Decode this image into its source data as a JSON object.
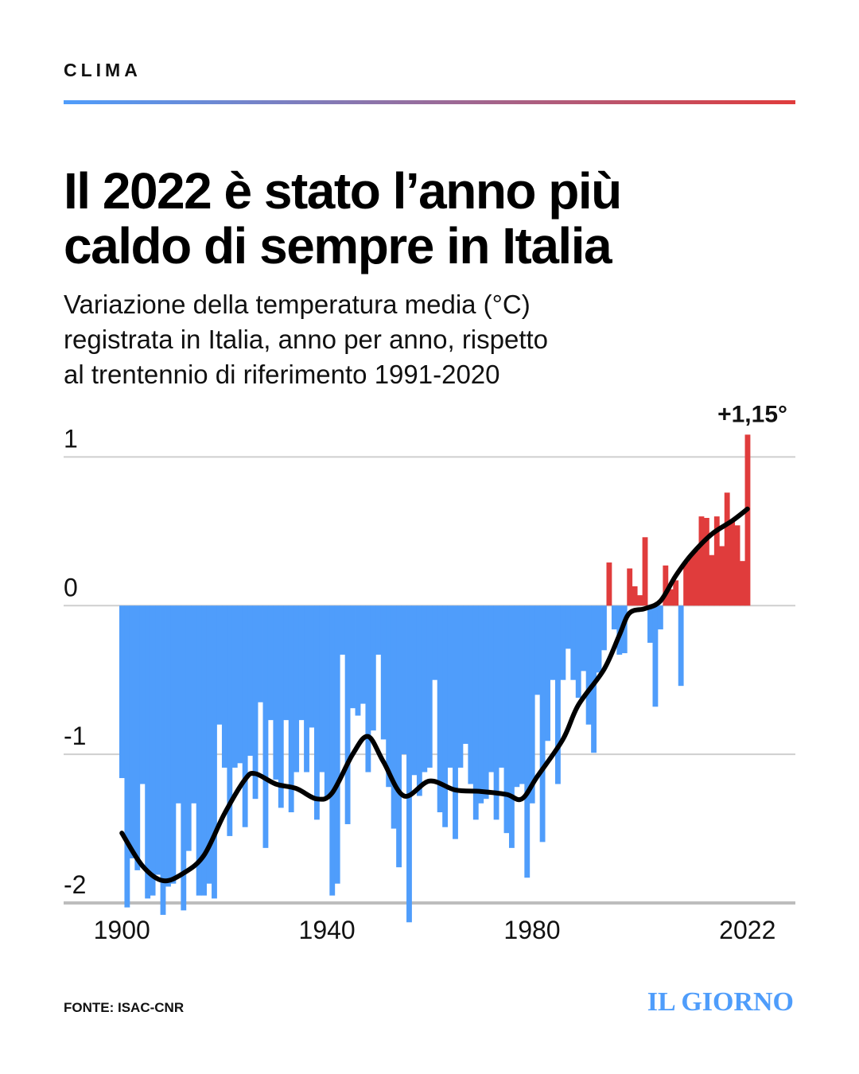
{
  "chart_data": {
    "type": "bar",
    "kicker": "CLIMA",
    "title": [
      "Il 2022 è stato l’anno più",
      "caldo di sempre in Italia"
    ],
    "subtitle": [
      "Variazione della temperatura media (°C)",
      "registrata in Italia, anno per anno, rispetto",
      "al trentennio di riferimento 1991-2020"
    ],
    "annotation": "+1,15°",
    "source": "FONTE: ISAC-CNR",
    "logo": "IL GIORNO",
    "positive_color": "#e03c3c",
    "negative_color": "#4f9dfb",
    "grid": true,
    "xlim": [
      1900,
      2022
    ],
    "xticks": [
      1900,
      1940,
      1980,
      2022
    ],
    "ylim": [
      -2,
      1.2
    ],
    "yticks": [
      1,
      0,
      -1,
      -2
    ],
    "x": [
      1900,
      1901,
      1902,
      1903,
      1904,
      1905,
      1906,
      1907,
      1908,
      1909,
      1910,
      1911,
      1912,
      1913,
      1914,
      1915,
      1916,
      1917,
      1918,
      1919,
      1920,
      1921,
      1922,
      1923,
      1924,
      1925,
      1926,
      1927,
      1928,
      1929,
      1930,
      1931,
      1932,
      1933,
      1934,
      1935,
      1936,
      1937,
      1938,
      1939,
      1940,
      1941,
      1942,
      1943,
      1944,
      1945,
      1946,
      1947,
      1948,
      1949,
      1950,
      1951,
      1952,
      1953,
      1954,
      1955,
      1956,
      1957,
      1958,
      1959,
      1960,
      1961,
      1962,
      1963,
      1964,
      1965,
      1966,
      1967,
      1968,
      1969,
      1970,
      1971,
      1972,
      1973,
      1974,
      1975,
      1976,
      1977,
      1978,
      1979,
      1980,
      1981,
      1982,
      1983,
      1984,
      1985,
      1986,
      1987,
      1988,
      1989,
      1990,
      1991,
      1992,
      1993,
      1994,
      1995,
      1996,
      1997,
      1998,
      1999,
      2000,
      2001,
      2002,
      2003,
      2004,
      2005,
      2006,
      2007,
      2008,
      2009,
      2010,
      2011,
      2012,
      2013,
      2014,
      2015,
      2016,
      2017,
      2018,
      2019,
      2020,
      2021,
      2022
    ],
    "values": [
      -1.16,
      -2.03,
      -1.7,
      -1.78,
      -1.2,
      -1.97,
      -1.95,
      -1.81,
      -2.08,
      -1.89,
      -1.87,
      -1.33,
      -2.05,
      -1.65,
      -1.33,
      -1.95,
      -1.95,
      -1.87,
      -1.97,
      -0.8,
      -1.09,
      -1.55,
      -1.09,
      -1.06,
      -1.49,
      -1.01,
      -1.3,
      -0.65,
      -1.63,
      -0.77,
      -1.17,
      -1.36,
      -0.77,
      -1.39,
      -1.12,
      -0.77,
      -1.12,
      -0.82,
      -1.44,
      -1.12,
      -1.3,
      -1.95,
      -1.87,
      -0.33,
      -1.47,
      -0.69,
      -0.74,
      -0.66,
      -1.12,
      -0.84,
      -0.33,
      -0.9,
      -1.22,
      -1.5,
      -1.76,
      -1.0,
      -2.13,
      -1.14,
      -1.28,
      -1.12,
      -1.09,
      -0.5,
      -1.39,
      -1.49,
      -1.09,
      -1.57,
      -1.09,
      -0.93,
      -1.2,
      -1.44,
      -1.33,
      -1.3,
      -1.12,
      -1.44,
      -1.09,
      -1.53,
      -1.63,
      -1.22,
      -1.2,
      -1.83,
      -1.33,
      -0.6,
      -1.59,
      -0.91,
      -0.5,
      -1.2,
      -0.5,
      -0.29,
      -0.5,
      -0.62,
      -0.44,
      -0.8,
      -0.99,
      -0.45,
      -0.3,
      0.29,
      -0.16,
      -0.33,
      -0.32,
      0.25,
      0.13,
      0.07,
      0.46,
      -0.25,
      -0.68,
      -0.16,
      0.27,
      0.11,
      0.17,
      -0.54,
      0.29,
      0.34,
      0.37,
      0.6,
      0.59,
      0.34,
      0.6,
      0.4,
      0.76,
      0.57,
      0.54,
      0.3,
      1.15
    ],
    "trend": {
      "color": "#000000",
      "x": [
        1900,
        1904,
        1908,
        1912,
        1916,
        1920,
        1924,
        1926,
        1930,
        1934,
        1938,
        1941,
        1945,
        1948,
        1951,
        1955,
        1960,
        1965,
        1970,
        1975,
        1978,
        1981,
        1986,
        1989,
        1994,
        1997,
        1999,
        2002,
        2005,
        2008,
        2011,
        2015,
        2019,
        2022
      ],
      "values": [
        -1.53,
        -1.75,
        -1.85,
        -1.8,
        -1.68,
        -1.4,
        -1.17,
        -1.13,
        -1.2,
        -1.23,
        -1.3,
        -1.26,
        -1.0,
        -0.88,
        -1.05,
        -1.28,
        -1.18,
        -1.24,
        -1.25,
        -1.27,
        -1.3,
        -1.15,
        -0.9,
        -0.67,
        -0.43,
        -0.2,
        -0.05,
        -0.02,
        0.03,
        0.2,
        0.34,
        0.48,
        0.57,
        0.65
      ]
    }
  }
}
